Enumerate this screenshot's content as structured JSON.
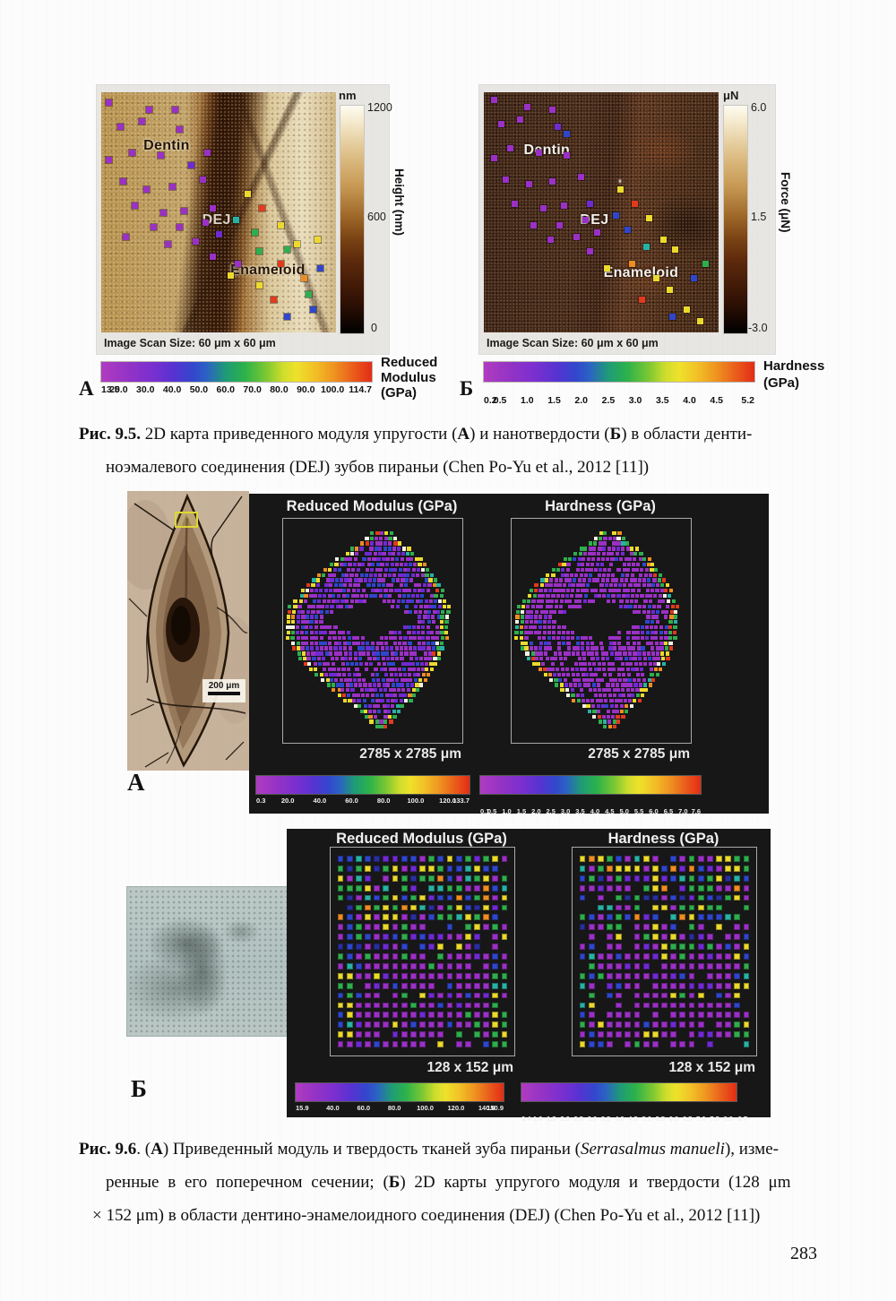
{
  "palette": [
    "#9b30c6",
    "#6f2ad2",
    "#2f46cc",
    "#2fae4e",
    "#ecda2d",
    "#ef8d22",
    "#e23a1d",
    "#27b3a4",
    "#f4f2e4",
    "#2a2f9e"
  ],
  "page_number": "283",
  "fig95": {
    "panelA": {
      "letter": "А",
      "labels": {
        "dentin": "Dentin",
        "dej": "DEJ",
        "enameloid": "Enameloid"
      },
      "scan_size": "Image Scan Size: 60 μm x 60 μm",
      "vbar": {
        "unit": "nm",
        "ticks": [
          "1200",
          "600",
          "0"
        ],
        "axis": "Height (nm)"
      },
      "hbar": {
        "label_lines": [
          "Reduced",
          "Modulus",
          "(GPa)"
        ],
        "ticks": [
          "13.5",
          "20.0",
          "30.0",
          "40.0",
          "50.0",
          "60.0",
          "70.0",
          "80.0",
          "90.0",
          "100.0",
          "114.7"
        ]
      },
      "markers": [
        [
          2,
          3,
          0
        ],
        [
          19,
          6,
          0
        ],
        [
          30,
          6,
          0
        ],
        [
          7,
          13,
          0
        ],
        [
          16,
          11,
          0
        ],
        [
          32,
          14,
          0
        ],
        [
          12,
          24,
          0
        ],
        [
          24,
          25,
          0
        ],
        [
          44,
          24,
          0
        ],
        [
          2,
          27,
          0
        ],
        [
          37,
          29,
          1
        ],
        [
          8,
          36,
          0
        ],
        [
          18,
          39,
          0
        ],
        [
          29,
          38,
          0
        ],
        [
          42,
          35,
          0
        ],
        [
          13,
          46,
          0
        ],
        [
          25,
          49,
          0
        ],
        [
          34,
          48,
          0
        ],
        [
          46,
          47,
          0
        ],
        [
          56,
          52,
          7
        ],
        [
          21,
          55,
          0
        ],
        [
          32,
          55,
          0
        ],
        [
          43,
          53,
          0
        ],
        [
          9,
          59,
          0
        ],
        [
          27,
          62,
          0
        ],
        [
          39,
          61,
          0
        ],
        [
          49,
          58,
          1
        ],
        [
          46,
          67,
          0
        ],
        [
          57,
          70,
          0
        ],
        [
          61,
          41,
          4
        ],
        [
          67,
          47,
          6
        ],
        [
          75,
          54,
          4
        ],
        [
          82,
          62,
          4
        ],
        [
          78,
          64,
          3
        ],
        [
          64,
          57,
          3
        ],
        [
          66,
          65,
          3
        ],
        [
          54,
          75,
          4
        ],
        [
          66,
          79,
          4
        ],
        [
          75,
          70,
          6
        ],
        [
          85,
          76,
          5
        ],
        [
          72,
          85,
          6
        ],
        [
          87,
          83,
          3
        ],
        [
          92,
          72,
          2
        ],
        [
          78,
          92,
          2
        ],
        [
          89,
          89,
          2
        ],
        [
          91,
          60,
          4
        ]
      ]
    },
    "panelB": {
      "letter": "Б",
      "labels": {
        "dentin": "Dentin",
        "dej": "DEJ",
        "enameloid": "Enameloid"
      },
      "scan_size": "Image Scan Size: 60 μm x 60 μm",
      "vbar": {
        "unit": "μN",
        "ticks": [
          "6.0",
          "1.5",
          "-3.0"
        ],
        "axis": "Force (μN)"
      },
      "hbar": {
        "label_lines": [
          "Hardness",
          "(GPa)"
        ],
        "ticks": [
          "0.2",
          "0.5",
          "1.0",
          "1.5",
          "2.0",
          "2.5",
          "3.0",
          "3.5",
          "4.0",
          "4.5",
          "5.2"
        ]
      },
      "markers": [
        [
          3,
          2,
          0
        ],
        [
          17,
          5,
          0
        ],
        [
          28,
          6,
          0
        ],
        [
          6,
          12,
          0
        ],
        [
          14,
          10,
          0
        ],
        [
          30,
          13,
          1
        ],
        [
          34,
          16,
          2
        ],
        [
          10,
          22,
          0
        ],
        [
          22,
          24,
          0
        ],
        [
          34,
          25,
          0
        ],
        [
          3,
          26,
          0
        ],
        [
          8,
          35,
          0
        ],
        [
          18,
          37,
          0
        ],
        [
          28,
          36,
          0
        ],
        [
          40,
          34,
          0
        ],
        [
          12,
          45,
          0
        ],
        [
          24,
          47,
          0
        ],
        [
          33,
          46,
          0
        ],
        [
          44,
          45,
          1
        ],
        [
          20,
          54,
          0
        ],
        [
          31,
          54,
          0
        ],
        [
          42,
          52,
          0
        ],
        [
          27,
          60,
          0
        ],
        [
          38,
          59,
          0
        ],
        [
          47,
          57,
          0
        ],
        [
          44,
          65,
          0
        ],
        [
          55,
          50,
          2
        ],
        [
          57,
          39,
          4
        ],
        [
          63,
          45,
          6
        ],
        [
          69,
          51,
          4
        ],
        [
          75,
          60,
          4
        ],
        [
          80,
          64,
          4
        ],
        [
          60,
          56,
          2
        ],
        [
          68,
          63,
          7
        ],
        [
          51,
          72,
          4
        ],
        [
          62,
          70,
          5
        ],
        [
          72,
          76,
          4
        ],
        [
          78,
          81,
          4
        ],
        [
          66,
          85,
          6
        ],
        [
          85,
          89,
          4
        ],
        [
          88,
          76,
          2
        ],
        [
          93,
          70,
          3
        ],
        [
          79,
          92,
          2
        ],
        [
          91,
          94,
          4
        ]
      ]
    },
    "caption": [
      [
        {
          "t": "Рис. 9.5.",
          "b": true
        },
        {
          "t": " 2D карта приведенного модуля упругости ("
        },
        {
          "t": "А",
          "b": true
        },
        {
          "t": ") и нанотвердости ("
        },
        {
          "t": "Б",
          "b": true
        },
        {
          "t": ") в области денти-"
        }
      ],
      [
        {
          "t": "ноэмалевого соединения (DEJ) зубов пираньи (Chen Po-Yu et al., 2012 [11])"
        }
      ]
    ]
  },
  "fig96": {
    "partA": {
      "letter": "А",
      "scalebar": "200 μm",
      "maps": [
        {
          "title": "Reduced Modulus (GPa)",
          "size_label": "2785 x 2785 μm",
          "ticks": [
            "0.3",
            "20.0",
            "40.0",
            "60.0",
            "80.0",
            "100.0",
            "120.0",
            "133.7"
          ],
          "gen": {
            "type": "diamond",
            "seed": 7,
            "mix": [
              [
                0.55,
                0
              ],
              [
                0.82,
                1
              ],
              [
                1,
                2
              ]
            ]
          }
        },
        {
          "title": "Hardness (GPa)",
          "size_label": "2785 x 2785 μm",
          "ticks": [
            "0.1",
            "0.5",
            "1.0",
            "1.5",
            "2.0",
            "2.5",
            "3.0",
            "3.5",
            "4.0",
            "4.5",
            "5.0",
            "5.5",
            "6.0",
            "6.5",
            "7.0",
            "7.6"
          ],
          "gen": {
            "type": "diamond",
            "seed": 13,
            "mix": [
              [
                0.82,
                0
              ],
              [
                0.94,
                1
              ],
              [
                1,
                2
              ]
            ]
          }
        }
      ]
    },
    "partB": {
      "letter": "Б",
      "maps": [
        {
          "title": "Reduced Modulus (GPa)",
          "size_label": "128 x 152 μm",
          "ticks": [
            "15.9",
            "40.0",
            "60.0",
            "80.0",
            "100.0",
            "120.0",
            "140.0",
            "150.9"
          ],
          "gen": {
            "type": "grid",
            "seed": 21
          }
        },
        {
          "title": "Hardness (GPa)",
          "size_label": "128 x 152 μm",
          "ticks": [
            "0.4",
            "1.0",
            "1.5",
            "2.0",
            "2.5",
            "3.0",
            "3.5",
            "4.0",
            "4.5",
            "5.0",
            "5.5",
            "6.0",
            "6.5",
            "7.0",
            "7.5",
            "8.0",
            "8.7"
          ],
          "gen": {
            "type": "grid",
            "seed": 33
          }
        }
      ]
    },
    "caption": [
      [
        {
          "t": "Рис. 9.6",
          "b": true
        },
        {
          "t": ". ("
        },
        {
          "t": "А",
          "b": true
        },
        {
          "t": ") Приведенный модуль и твердость тканей зуба пираньи ("
        },
        {
          "t": "Serrasalmus manueli",
          "i": true
        },
        {
          "t": "), изме-"
        }
      ],
      [
        {
          "t": "ренные в его поперечном сечении; ("
        },
        {
          "t": "Б",
          "b": true
        },
        {
          "t": ") 2D карты упругого модуля и твердости (128 μm"
        }
      ],
      [
        {
          "t": "× 152 μm) в области дентино-энамелоидного соединения (DEJ) (Chen Po-Yu et al., 2012 [11])"
        }
      ]
    ]
  }
}
